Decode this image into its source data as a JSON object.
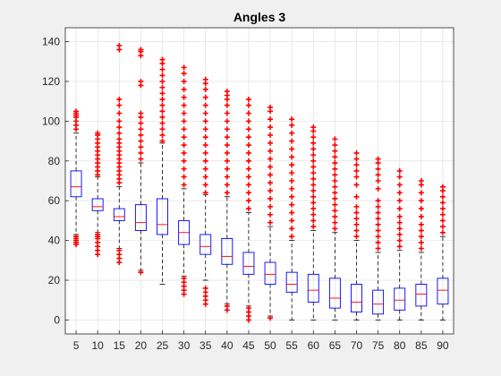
{
  "chart_data": {
    "type": "boxplot",
    "title": "Angles 3",
    "xlabel": "",
    "ylabel": "",
    "categories": [
      "5",
      "10",
      "15",
      "20",
      "25",
      "30",
      "35",
      "40",
      "45",
      "50",
      "55",
      "60",
      "65",
      "70",
      "75",
      "80",
      "85",
      "90"
    ],
    "ylim": [
      -7,
      147
    ],
    "yticks": [
      0,
      20,
      40,
      60,
      80,
      100,
      120,
      140
    ],
    "grid": true,
    "box_color": "#0000ff",
    "median_color": "#ff0000",
    "whisker_color": "#000000",
    "outlier_color": "#ff0000",
    "boxes": [
      {
        "q1": 62,
        "median": 67,
        "q3": 75,
        "low": 43,
        "high": 94,
        "outliers_low": [
          40,
          38,
          39,
          41,
          42
        ],
        "outliers_high": [
          96,
          98,
          100,
          102,
          103,
          104,
          105
        ]
      },
      {
        "q1": 55,
        "median": 57,
        "q3": 61,
        "low": 44,
        "high": 72,
        "outliers_low": [
          33,
          35,
          37,
          39,
          41,
          42,
          43
        ],
        "outliers_high": [
          73,
          75,
          77,
          79,
          81,
          83,
          85,
          87,
          89,
          91,
          93,
          94
        ]
      },
      {
        "q1": 50,
        "median": 52,
        "q3": 56,
        "low": 36,
        "high": 67,
        "outliers_low": [
          29,
          31,
          33,
          35
        ],
        "outliers_high": [
          69,
          71,
          73,
          75,
          77,
          79,
          81,
          83,
          85,
          87,
          89,
          91,
          94,
          97,
          100,
          104,
          108,
          111,
          136,
          138
        ]
      },
      {
        "q1": 45,
        "median": 49,
        "q3": 58,
        "low": 25,
        "high": 79,
        "outliers_low": [
          24
        ],
        "outliers_high": [
          81,
          84,
          87,
          90,
          93,
          96,
          99,
          102,
          104,
          118,
          120,
          133,
          135,
          136
        ]
      },
      {
        "q1": 43,
        "median": 48,
        "q3": 61,
        "low": 18,
        "high": 89,
        "outliers_low": [],
        "outliers_high": [
          90,
          93,
          96,
          99,
          102,
          105,
          108,
          111,
          114,
          117,
          120,
          123,
          126,
          129,
          131
        ]
      },
      {
        "q1": 38,
        "median": 44,
        "q3": 50,
        "low": 22,
        "high": 66,
        "outliers_low": [
          13,
          15,
          17,
          19,
          21
        ],
        "outliers_high": [
          68,
          72,
          76,
          80,
          84,
          88,
          92,
          96,
          100,
          104,
          108,
          112,
          116,
          120,
          124,
          127
        ]
      },
      {
        "q1": 33,
        "median": 37,
        "q3": 43,
        "low": 20,
        "high": 63,
        "outliers_low": [
          8,
          10,
          12,
          14,
          16
        ],
        "outliers_high": [
          64,
          68,
          72,
          76,
          80,
          84,
          88,
          92,
          96,
          100,
          104,
          108,
          112,
          116,
          119,
          121
        ]
      },
      {
        "q1": 28,
        "median": 32,
        "q3": 41,
        "low": 8,
        "high": 62,
        "outliers_low": [
          5,
          7
        ],
        "outliers_high": [
          64,
          68,
          72,
          76,
          80,
          84,
          88,
          92,
          96,
          100,
          104,
          108,
          111,
          113,
          115
        ]
      },
      {
        "q1": 23,
        "median": 27,
        "q3": 34,
        "low": 7,
        "high": 54,
        "outliers_low": [
          0,
          2,
          4,
          6
        ],
        "outliers_high": [
          56,
          60,
          64,
          68,
          72,
          76,
          80,
          84,
          88,
          92,
          96,
          100,
          104,
          108,
          111
        ]
      },
      {
        "q1": 18,
        "median": 23,
        "q3": 29,
        "low": 2,
        "high": 47,
        "outliers_low": [
          1
        ],
        "outliers_high": [
          49,
          53,
          57,
          61,
          65,
          69,
          73,
          77,
          81,
          85,
          89,
          93,
          97,
          101,
          105,
          107
        ]
      },
      {
        "q1": 14,
        "median": 18,
        "q3": 24,
        "low": 0,
        "high": 40,
        "outliers_low": [],
        "outliers_high": [
          42,
          46,
          50,
          54,
          58,
          62,
          66,
          70,
          74,
          78,
          82,
          86,
          90,
          94,
          98,
          101
        ]
      },
      {
        "q1": 9,
        "median": 15,
        "q3": 23,
        "low": 0,
        "high": 45,
        "outliers_low": [],
        "outliers_high": [
          47,
          50,
          53,
          56,
          59,
          62,
          65,
          68,
          71,
          74,
          77,
          80,
          83,
          86,
          89,
          92,
          95,
          97
        ]
      },
      {
        "q1": 6,
        "median": 11,
        "q3": 21,
        "low": 0,
        "high": 44,
        "outliers_low": [],
        "outliers_high": [
          46,
          49,
          52,
          55,
          58,
          61,
          64,
          67,
          70,
          73,
          76,
          79,
          82,
          85,
          88,
          91
        ]
      },
      {
        "q1": 4,
        "median": 9,
        "q3": 18,
        "low": 0,
        "high": 40,
        "outliers_low": [],
        "outliers_high": [
          42,
          45,
          48,
          51,
          54,
          57,
          62,
          68,
          72,
          75,
          78,
          81,
          84
        ]
      },
      {
        "q1": 3,
        "median": 8,
        "q3": 15,
        "low": 0,
        "high": 34,
        "outliers_low": [],
        "outliers_high": [
          36,
          39,
          42,
          45,
          48,
          51,
          54,
          57,
          60,
          66,
          70,
          73,
          76,
          79,
          81
        ]
      },
      {
        "q1": 5,
        "median": 10,
        "q3": 16,
        "low": 0,
        "high": 35,
        "outliers_low": [],
        "outliers_high": [
          37,
          40,
          43,
          46,
          49,
          52,
          56,
          60,
          64,
          68,
          72,
          75
        ]
      },
      {
        "q1": 7,
        "median": 13,
        "q3": 18,
        "low": 0,
        "high": 34,
        "outliers_low": [],
        "outliers_high": [
          36,
          39,
          42,
          45,
          48,
          52,
          56,
          60,
          64,
          68,
          70
        ]
      },
      {
        "q1": 8,
        "median": 15,
        "q3": 21,
        "low": 0,
        "high": 42,
        "outliers_low": [],
        "outliers_high": [
          44,
          47,
          50,
          53,
          56,
          59,
          62,
          65,
          67
        ]
      }
    ]
  }
}
